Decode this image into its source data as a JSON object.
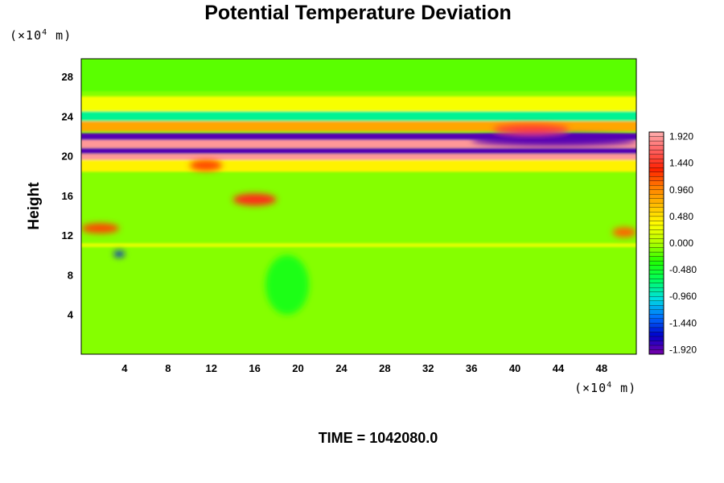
{
  "chart_data": {
    "type": "heatmap",
    "title": "Potential Temperature Deviation",
    "ylabel": "Height",
    "x_unit": {
      "prefix": "(×10",
      "exp": "4",
      "suffix": " m)"
    },
    "y_unit": {
      "prefix": "(×10",
      "exp": "4",
      "suffix": " m)"
    },
    "xlim": [
      0,
      51.2
    ],
    "ylim": [
      0,
      29.8
    ],
    "x_ticks": [
      4,
      8,
      12,
      16,
      20,
      24,
      28,
      32,
      36,
      40,
      44,
      48
    ],
    "y_ticks": [
      4,
      8,
      12,
      16,
      20,
      24,
      28
    ],
    "colorbar": {
      "min": -2.0,
      "max": 2.0,
      "step": 0.08,
      "tick_labels": [
        "1.920",
        "1.440",
        "0.960",
        "0.480",
        "0.000",
        "-0.480",
        "-0.960",
        "-1.440",
        "-1.920"
      ],
      "tick_values": [
        1.92,
        1.44,
        0.96,
        0.48,
        0.0,
        -0.48,
        -0.96,
        -1.44,
        -1.92
      ],
      "colors": [
        "#7a00a8",
        "#0000cc",
        "#0070ff",
        "#00e0e0",
        "#00ff60",
        "#20ff00",
        "#b0ff00",
        "#ffff00",
        "#ffc000",
        "#ff8000",
        "#ff2000",
        "#ff6060",
        "#ffb0b0"
      ]
    },
    "bands": [
      {
        "name": "background",
        "value": -0.1
      },
      {
        "y": [
          26.5,
          29.8
        ],
        "value": -0.2
      },
      {
        "y": [
          24.5,
          26.0
        ],
        "value": 0.3
      },
      {
        "y": [
          23.5,
          24.5
        ],
        "value": -0.8
      },
      {
        "y": [
          22.5,
          23.5
        ],
        "value": 0.8
      },
      {
        "y": [
          21.6,
          22.3
        ],
        "value": -1.9
      },
      {
        "y": [
          20.8,
          21.6
        ],
        "value": 1.9
      },
      {
        "y": [
          20.2,
          20.8
        ],
        "value": -1.9
      },
      {
        "y": [
          19.6,
          20.2
        ],
        "value": 1.9
      },
      {
        "y": [
          18.4,
          19.6
        ],
        "value": 0.4
      },
      {
        "y": [
          10.8,
          11.2
        ],
        "value": 0.2
      }
    ],
    "features": [
      {
        "x": [
          38,
          45
        ],
        "y": [
          22.2,
          23.2
        ],
        "value": 1.5
      },
      {
        "x": [
          36,
          51.2
        ],
        "y": [
          21.0,
          22.2
        ],
        "value": -1.9
      },
      {
        "x": [
          10,
          13
        ],
        "y": [
          18.5,
          19.6
        ],
        "value": 1.2
      },
      {
        "x": [
          14,
          18
        ],
        "y": [
          15.0,
          16.2
        ],
        "value": 1.4
      },
      {
        "x": [
          0,
          3.5
        ],
        "y": [
          12.2,
          13.2
        ],
        "value": 1.2
      },
      {
        "x": [
          3,
          4
        ],
        "y": [
          9.8,
          10.4
        ],
        "value": -1.6
      },
      {
        "x": [
          49,
          51.2
        ],
        "y": [
          11.8,
          12.8
        ],
        "value": 1.1
      },
      {
        "x": [
          17,
          21
        ],
        "y": [
          4,
          10
        ],
        "value": -0.4
      }
    ]
  },
  "footer": {
    "time_label": "TIME = 1042080.0"
  }
}
